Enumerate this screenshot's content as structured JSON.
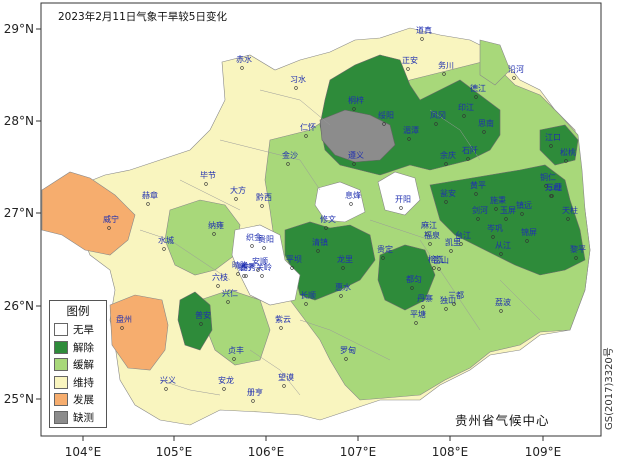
{
  "title": "2023年2月11日气象干旱较5日变化",
  "credit": "贵州省气候中心",
  "code": "GS(2017)3320号",
  "axes": {
    "x_ticks": [
      "104°E",
      "105°E",
      "106°E",
      "107°E",
      "108°E",
      "109°E"
    ],
    "y_ticks": [
      "29°N",
      "28°N",
      "27°N",
      "26°N",
      "25°N"
    ]
  },
  "legend": {
    "title": "图例",
    "items": [
      {
        "label": "无旱",
        "color": "#ffffff"
      },
      {
        "label": "解除",
        "color": "#2e8b3a"
      },
      {
        "label": "缓解",
        "color": "#a8d87a"
      },
      {
        "label": "维持",
        "color": "#f9f5bf"
      },
      {
        "label": "发展",
        "color": "#f6ad6e"
      },
      {
        "label": "缺测",
        "color": "#8c8c8c"
      }
    ]
  },
  "counties": [
    "赤水",
    "习水",
    "桐梓",
    "绥阳",
    "正安",
    "道真",
    "务川",
    "凤冈",
    "湄潭",
    "余庆",
    "仁怀",
    "遵义",
    "金沙",
    "黔西",
    "大方",
    "毕节",
    "赫章",
    "威宁",
    "纳雍",
    "织金",
    "水城",
    "六枝",
    "盘州",
    "普安",
    "晴隆",
    "兴仁",
    "兴义",
    "安龙",
    "贞丰",
    "册亨",
    "望谟",
    "紫云",
    "镇宁",
    "关岭",
    "平坝",
    "清镇",
    "修文",
    "息烽",
    "开阳",
    "瓮安",
    "贵定",
    "龙里",
    "惠水",
    "长顺",
    "罗甸",
    "平塘",
    "独山",
    "都匀",
    "麻江",
    "福泉",
    "黄平",
    "施秉",
    "镇远",
    "三穗",
    "天柱",
    "锦屏",
    "黎平",
    "从江",
    "榕江",
    "雷山",
    "台江",
    "剑河",
    "凯里",
    "丹寨",
    "三都",
    "荔波",
    "印江",
    "江口",
    "石阡",
    "思南",
    "德江",
    "沿河",
    "松桃",
    "铜仁",
    "万山",
    "玉屏",
    "岑巩",
    "贵阳",
    "安顺",
    "西秀"
  ]
}
